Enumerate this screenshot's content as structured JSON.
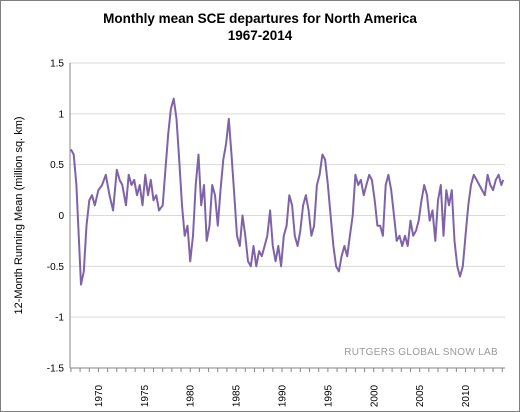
{
  "chart_data": {
    "type": "line",
    "title": "Monthly mean SCE departures for North America",
    "subtitle": "1967-2014",
    "ylabel": "12-Month Running Mean (million sq. km)",
    "xlabel": "",
    "ylim": [
      -1.5,
      1.5
    ],
    "xlim": [
      1966.9,
      2014.3
    ],
    "y_ticks": [
      "1.5",
      "1",
      "0.5",
      "0",
      "-0.5",
      "-1",
      "-1.5"
    ],
    "x_ticks": [
      "1970",
      "1975",
      "1980",
      "1985",
      "1990",
      "1995",
      "2000",
      "2005",
      "2010"
    ],
    "grid": "horizontal",
    "annotation": "RUTGERS GLOBAL SNOW LAB",
    "line_color": "#7f63a8",
    "series": [
      {
        "x": [
          1967.0,
          1967.3,
          1967.6,
          1967.9,
          1968.1,
          1968.4,
          1968.7,
          1969.0,
          1969.3,
          1969.6,
          1970.0,
          1970.4,
          1970.8,
          1971.2,
          1971.6,
          1972.0,
          1972.3,
          1972.6,
          1973.0,
          1973.3,
          1973.6,
          1973.9,
          1974.2,
          1974.5,
          1974.8,
          1975.1,
          1975.4,
          1975.7,
          1976.0,
          1976.3,
          1976.6,
          1977.0,
          1977.3,
          1977.6,
          1977.9,
          1978.2,
          1978.5,
          1978.8,
          1979.1,
          1979.4,
          1979.7,
          1980.0,
          1980.3,
          1980.6,
          1980.9,
          1981.2,
          1981.5,
          1981.8,
          1982.1,
          1982.4,
          1982.7,
          1983.0,
          1983.3,
          1983.6,
          1983.9,
          1984.2,
          1984.5,
          1984.8,
          1985.1,
          1985.4,
          1985.7,
          1986.0,
          1986.3,
          1986.6,
          1986.9,
          1987.2,
          1987.5,
          1987.8,
          1988.1,
          1988.4,
          1988.7,
          1989.0,
          1989.3,
          1989.6,
          1989.9,
          1990.2,
          1990.5,
          1990.8,
          1991.1,
          1991.4,
          1991.7,
          1992.0,
          1992.3,
          1992.6,
          1992.9,
          1993.2,
          1993.5,
          1993.8,
          1994.1,
          1994.4,
          1994.7,
          1995.0,
          1995.3,
          1995.6,
          1995.9,
          1996.2,
          1996.5,
          1996.8,
          1997.1,
          1997.4,
          1997.7,
          1998.0,
          1998.3,
          1998.6,
          1998.9,
          1999.2,
          1999.5,
          1999.8,
          2000.1,
          2000.4,
          2000.7,
          2001.0,
          2001.3,
          2001.6,
          2001.9,
          2002.2,
          2002.5,
          2002.8,
          2003.1,
          2003.4,
          2003.7,
          2004.0,
          2004.3,
          2004.6,
          2004.9,
          2005.2,
          2005.5,
          2005.8,
          2006.1,
          2006.4,
          2006.7,
          2007.0,
          2007.3,
          2007.6,
          2007.9,
          2008.2,
          2008.5,
          2008.8,
          2009.1,
          2009.4,
          2009.7,
          2010.0,
          2010.3,
          2010.6,
          2010.9,
          2011.2,
          2011.5,
          2011.8,
          2012.1,
          2012.4,
          2012.7,
          2013.0,
          2013.3,
          2013.6,
          2013.9,
          2014.1
        ],
        "values": [
          0.65,
          0.6,
          0.3,
          -0.3,
          -0.68,
          -0.55,
          -0.1,
          0.15,
          0.2,
          0.1,
          0.25,
          0.3,
          0.4,
          0.2,
          0.05,
          0.45,
          0.35,
          0.3,
          0.1,
          0.4,
          0.3,
          0.35,
          0.2,
          0.3,
          0.1,
          0.4,
          0.2,
          0.35,
          0.15,
          0.2,
          0.05,
          0.1,
          0.45,
          0.8,
          1.05,
          1.15,
          0.95,
          0.55,
          0.1,
          -0.2,
          -0.1,
          -0.45,
          -0.2,
          0.3,
          0.6,
          0.1,
          0.3,
          -0.25,
          -0.1,
          0.3,
          0.2,
          -0.1,
          0.25,
          0.55,
          0.7,
          0.95,
          0.6,
          0.2,
          -0.2,
          -0.3,
          0.0,
          -0.2,
          -0.45,
          -0.5,
          -0.3,
          -0.5,
          -0.35,
          -0.4,
          -0.3,
          -0.2,
          0.05,
          -0.3,
          -0.45,
          -0.3,
          -0.5,
          -0.2,
          -0.1,
          0.2,
          0.1,
          -0.2,
          -0.3,
          -0.15,
          0.1,
          0.2,
          0.05,
          -0.2,
          -0.1,
          0.3,
          0.4,
          0.6,
          0.55,
          0.3,
          0.0,
          -0.3,
          -0.5,
          -0.55,
          -0.4,
          -0.3,
          -0.4,
          -0.2,
          0.0,
          0.4,
          0.3,
          0.35,
          0.2,
          0.3,
          0.4,
          0.35,
          0.15,
          -0.1,
          -0.1,
          -0.2,
          0.3,
          0.4,
          0.25,
          0.0,
          -0.25,
          -0.2,
          -0.3,
          -0.2,
          -0.3,
          -0.05,
          -0.2,
          -0.15,
          -0.05,
          0.15,
          0.3,
          0.2,
          -0.05,
          0.05,
          -0.25,
          0.15,
          0.3,
          -0.2,
          0.25,
          0.1,
          0.25,
          -0.25,
          -0.5,
          -0.6,
          -0.5,
          -0.2,
          0.1,
          0.3,
          0.4,
          0.35,
          0.3,
          0.25,
          0.2,
          0.4,
          0.3,
          0.25,
          0.35,
          0.4,
          0.3,
          0.35
        ]
      }
    ]
  }
}
